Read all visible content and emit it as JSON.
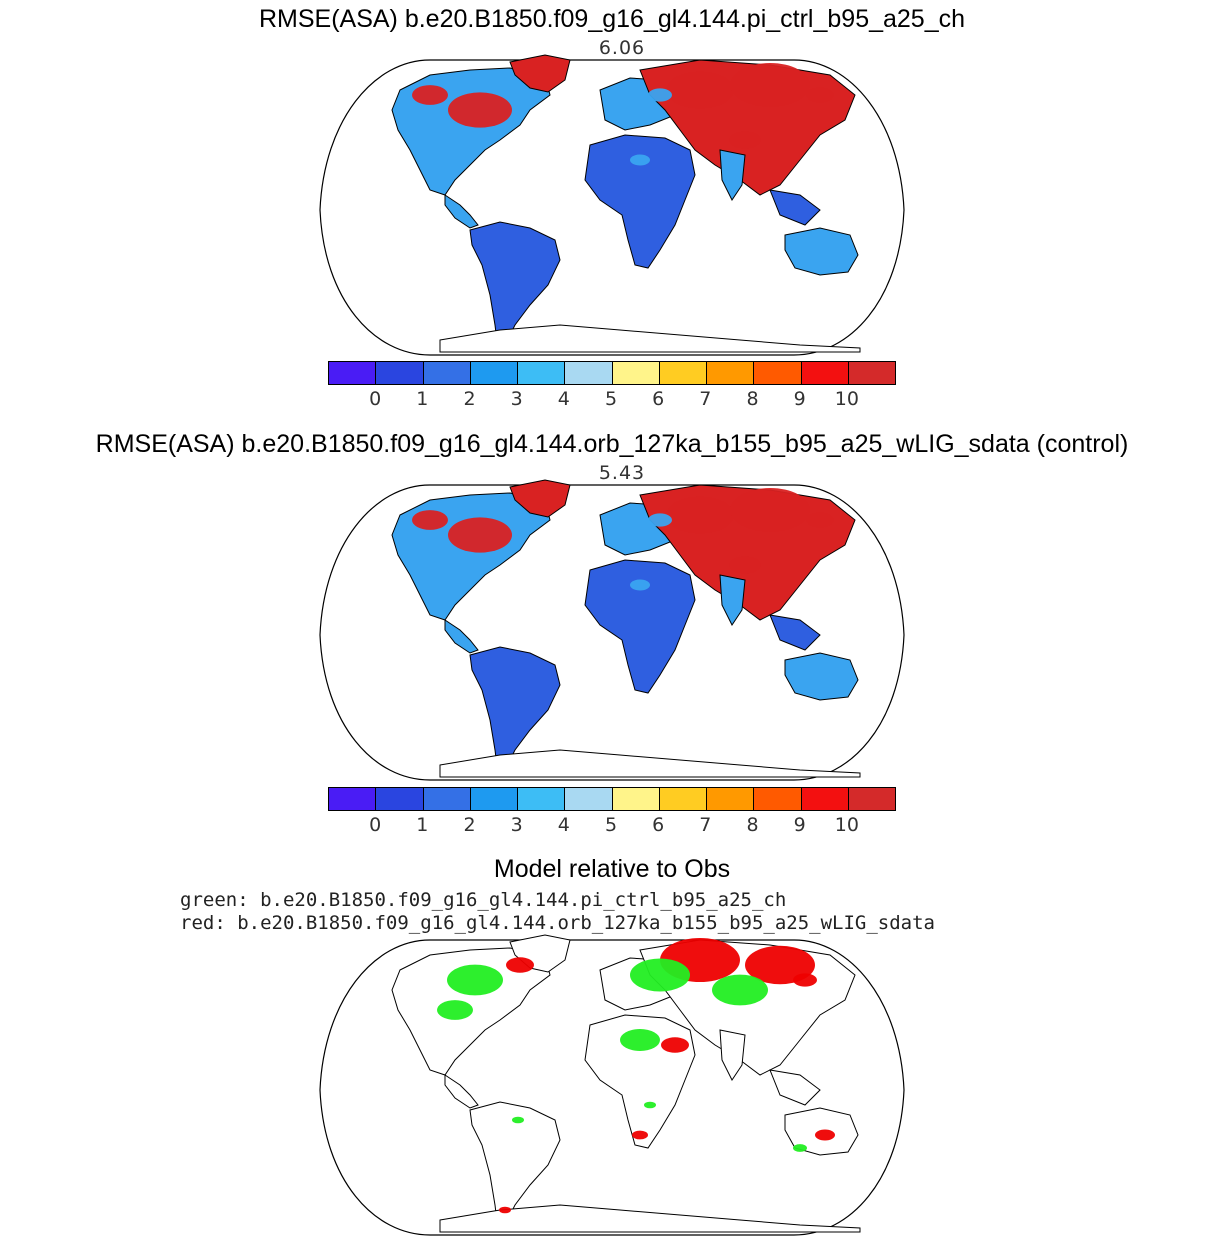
{
  "panels": [
    {
      "title": "RMSE(ASA) b.e20.B1850.f09_g16_gl4.144.pi_ctrl_b95_a25_ch",
      "value": "6.06"
    },
    {
      "title": "RMSE(ASA) b.e20.B1850.f09_g16_gl4.144.orb_127ka_b155_b95_a25_wLIG_sdata (control)",
      "value": "5.43"
    },
    {
      "title": "Model relative to Obs",
      "legend_green": "green: b.e20.B1850.f09_g16_gl4.144.pi_ctrl_b95_a25_ch",
      "legend_red": "red: b.e20.B1850.f09_g16_gl4.144.orb_127ka_b155_b95_a25_wLIG_sdata"
    }
  ],
  "colorbar": {
    "ticks": [
      "0",
      "1",
      "2",
      "3",
      "4",
      "5",
      "6",
      "7",
      "8",
      "9",
      "10"
    ],
    "colors": [
      "#4a1cf5",
      "#2a45e0",
      "#3470e6",
      "#1e9af0",
      "#3dbdf5",
      "#a9d9f2",
      "#fff48a",
      "#ffcc22",
      "#ff9900",
      "#ff5a00",
      "#f31010",
      "#d42a2a"
    ]
  },
  "map_colors": {
    "ocean": "#ffffff",
    "coast": "#000000",
    "low": "#2f5fe0",
    "mid": "#3aa4f0",
    "high": "#d92222",
    "green": "#22ee22",
    "red": "#ee0000"
  }
}
